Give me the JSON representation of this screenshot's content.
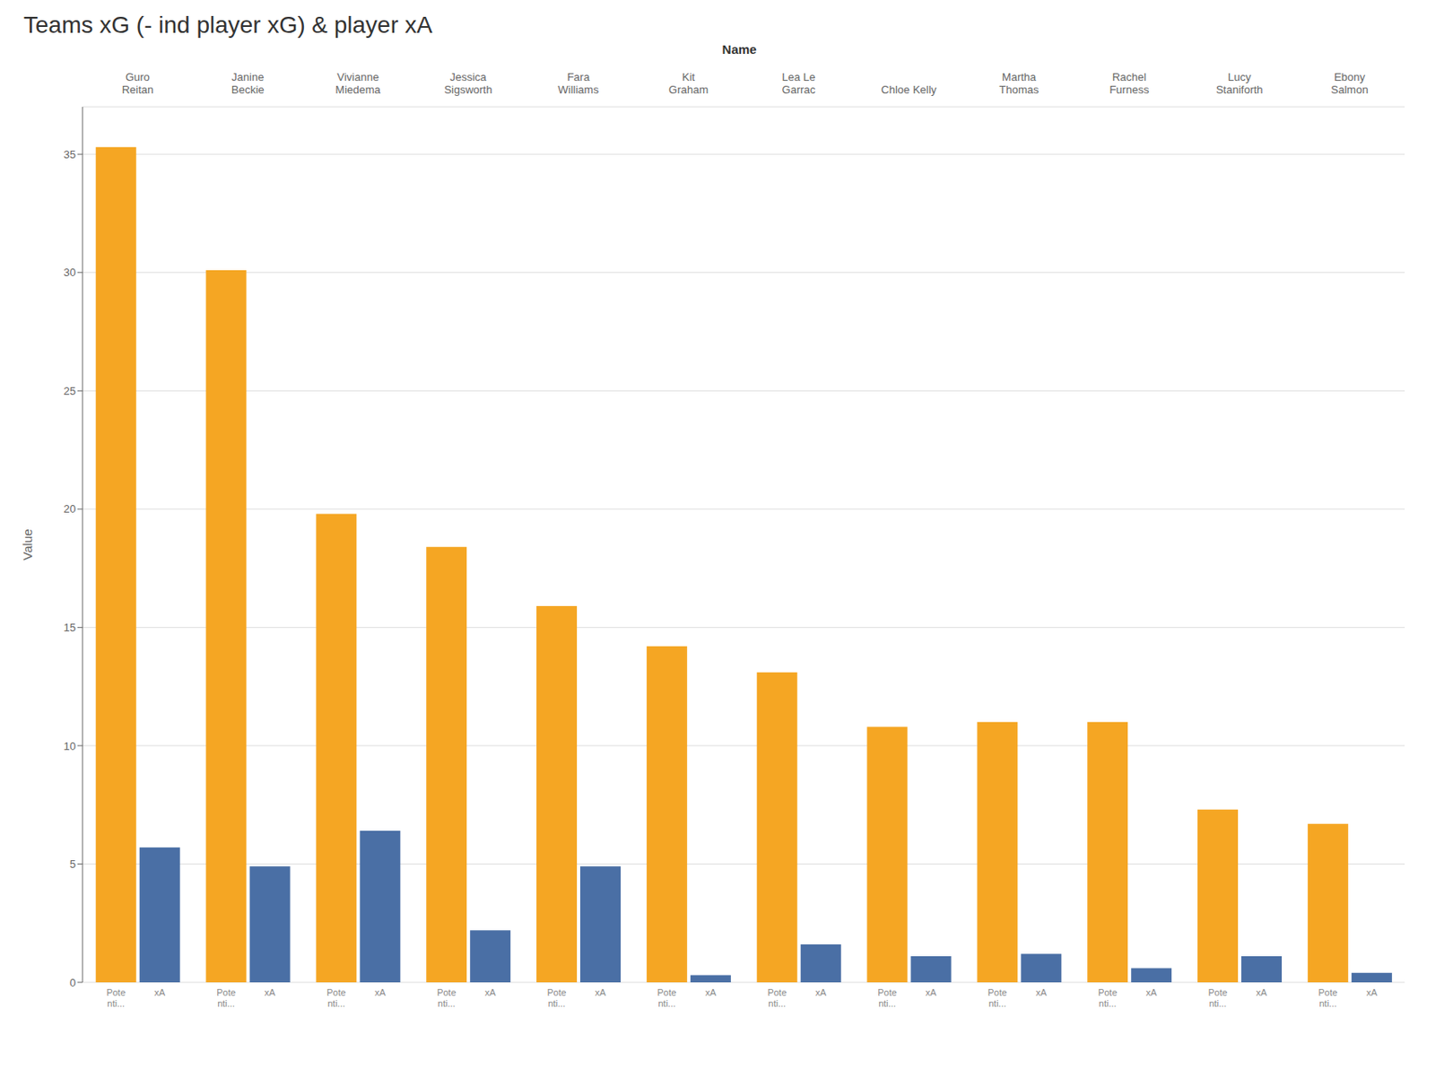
{
  "chart_data": {
    "type": "bar",
    "title": "Teams xG (- ind player xG) & player xA",
    "xlabel": "Name",
    "ylabel": "Value",
    "categories": [
      "Guro\nReitan",
      "Janine\nBeckie",
      "Vivianne\nMiedema",
      "Jessica\nSigsworth",
      "Fara\nWilliams",
      "Kit\nGraham",
      "Lea Le\nGarrac",
      "Chloe Kelly",
      "Martha\nThomas",
      "Rachel\nFurness",
      "Lucy\nStaniforth",
      "Ebony\nSalmon"
    ],
    "series": [
      {
        "name": "Pote\nnti...",
        "color": "#F5A623",
        "values": [
          35.3,
          30.1,
          19.8,
          18.4,
          15.9,
          14.2,
          13.1,
          10.8,
          11.0,
          11.0,
          7.3,
          6.7
        ]
      },
      {
        "name": "xA",
        "color": "#4A6FA5",
        "values": [
          5.7,
          4.9,
          6.4,
          2.2,
          4.9,
          0.3,
          1.6,
          1.1,
          1.2,
          0.6,
          1.1,
          0.4
        ]
      }
    ],
    "ylim": [
      0,
      37
    ],
    "yticks": [
      0,
      5,
      10,
      15,
      20,
      25,
      30,
      35
    ],
    "grid": true
  }
}
